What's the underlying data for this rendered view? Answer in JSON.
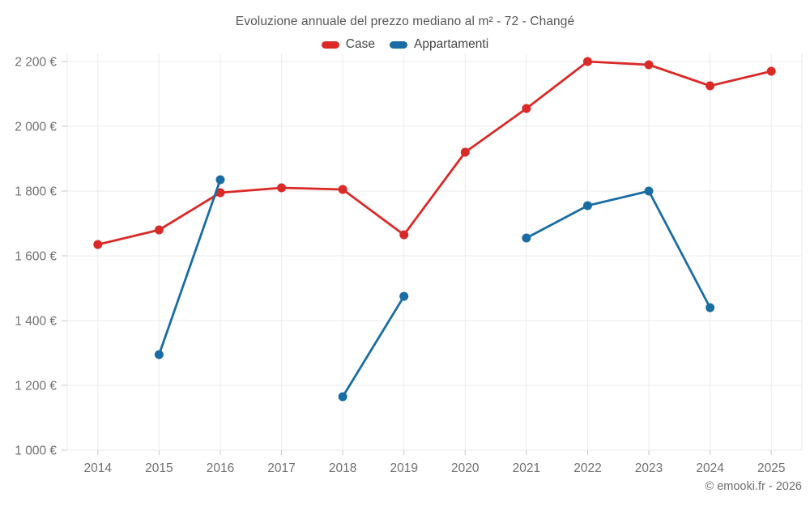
{
  "chart_data": {
    "type": "line",
    "title": "Evoluzione annuale del prezzo mediano al m² - 72 - Changé",
    "categories": [
      "2014",
      "2015",
      "2016",
      "2017",
      "2018",
      "2019",
      "2020",
      "2021",
      "2022",
      "2023",
      "2024",
      "2025"
    ],
    "series": [
      {
        "name": "Case",
        "color": "#da2a27",
        "values": [
          1635,
          1680,
          1795,
          1810,
          1805,
          1665,
          1920,
          2055,
          2200,
          2190,
          2125,
          2170
        ]
      },
      {
        "name": "Appartamenti",
        "color": "#1a6da3",
        "values": [
          null,
          1295,
          1835,
          null,
          1165,
          1475,
          null,
          1655,
          1755,
          1800,
          1440,
          null
        ]
      }
    ],
    "ylim": [
      1000,
      2200
    ],
    "y_tick_step": 200,
    "y_ticks": [
      {
        "value": 2200,
        "label": "2 200 €"
      },
      {
        "value": 2000,
        "label": "2 000 €"
      },
      {
        "value": 1800,
        "label": "1 800 €"
      },
      {
        "value": 1600,
        "label": "1 600 €"
      },
      {
        "value": 1400,
        "label": "1 400 €"
      },
      {
        "value": 1200,
        "label": "1 200 €"
      },
      {
        "value": 1000,
        "label": "1 000 €"
      }
    ],
    "grid": true,
    "legend_position": "top",
    "xlabel": "",
    "ylabel": ""
  },
  "footer": "© emooki.fr - 2026",
  "colors": {
    "background": "#ffffff",
    "grid": "#ebebeb",
    "tick": "#c9c9c9",
    "axis_text": "#707070",
    "title_text": "#565656",
    "legend_text": "#454545",
    "footer_text": "#6e6e6e"
  }
}
